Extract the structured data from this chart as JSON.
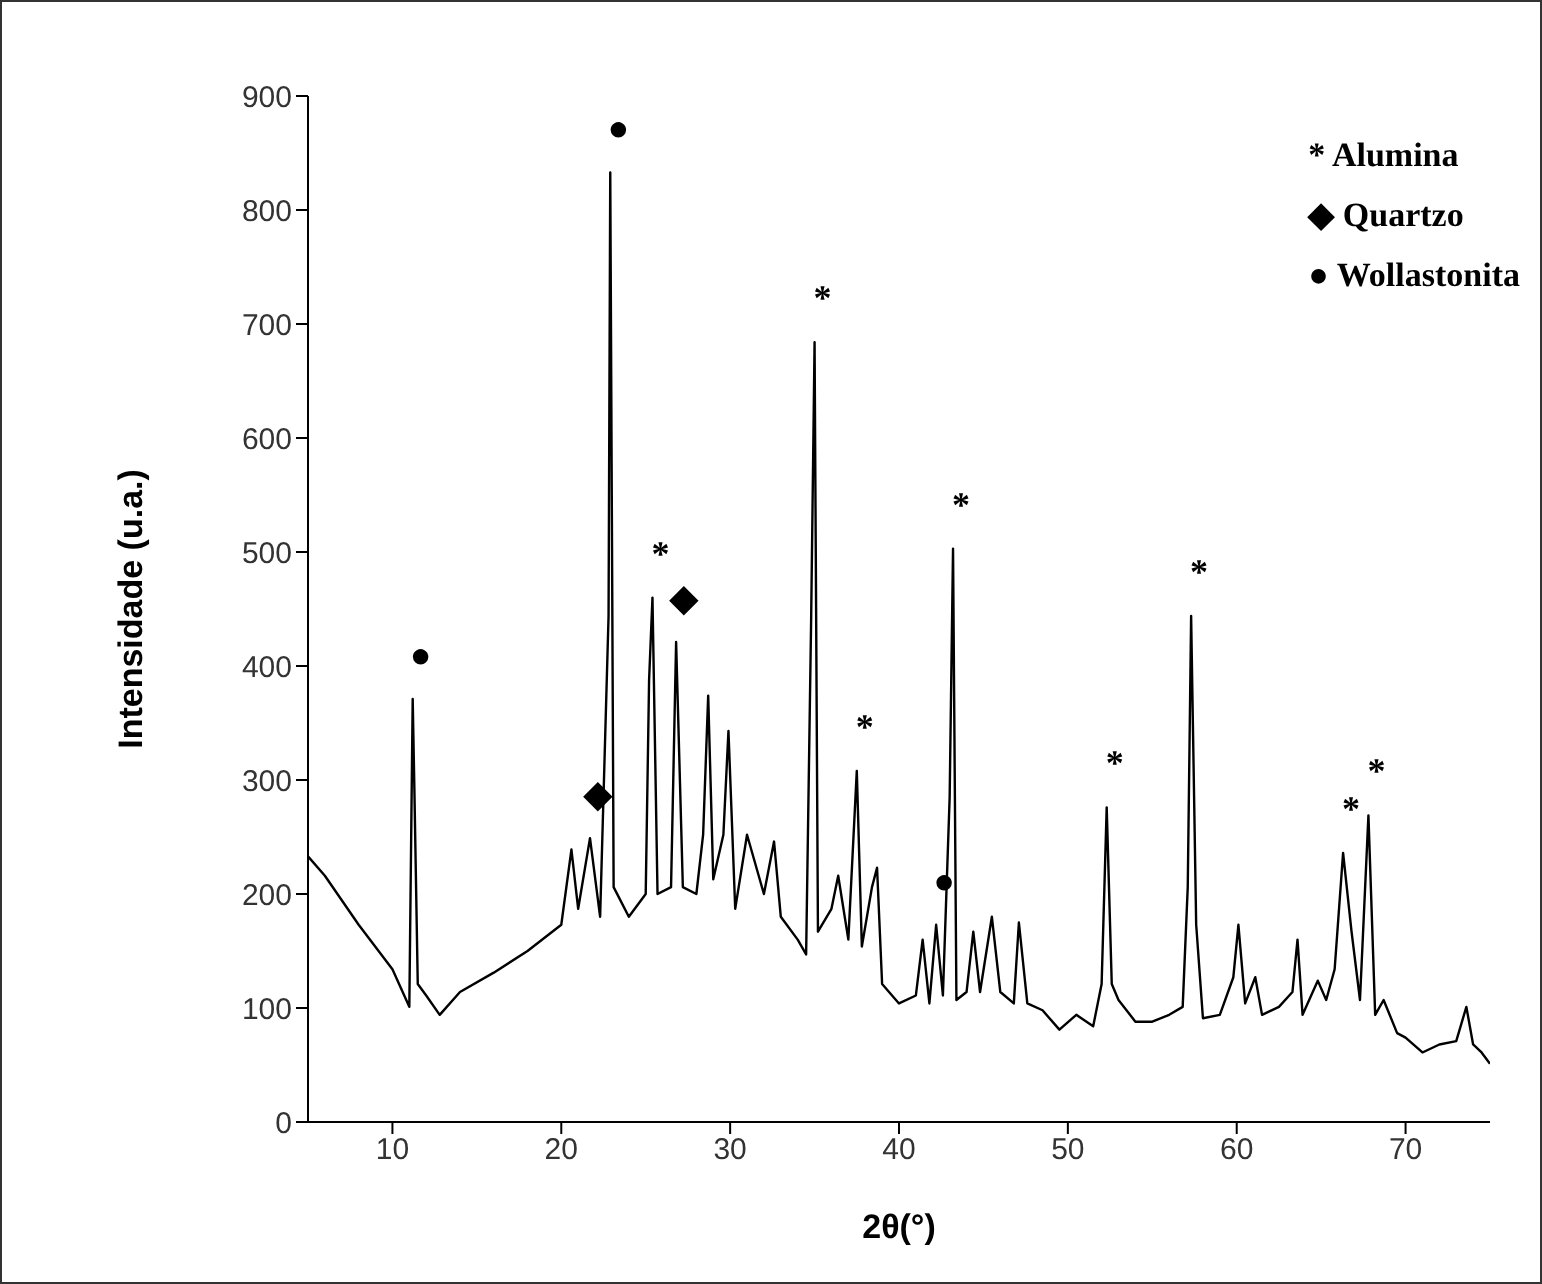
{
  "chart_data": {
    "type": "line",
    "xlabel": "2θ(°)",
    "ylabel": "Intensidade (u.a.)",
    "xlim": [
      5,
      75
    ],
    "xticks": [
      10,
      20,
      30,
      40,
      50,
      60,
      70
    ],
    "ylim": [
      0,
      900
    ],
    "yticks": [
      0,
      100,
      200,
      300,
      400,
      500,
      600,
      700,
      800,
      900
    ],
    "grid": false,
    "marker": "none",
    "line_style": "solid",
    "series": [
      {
        "color": "#000000",
        "x": [
          5,
          6,
          8,
          10,
          11,
          11.2,
          11.3,
          11.5,
          12,
          12.8,
          14,
          16,
          18,
          20,
          20.6,
          21,
          21.7,
          22.3,
          22.8,
          22.9,
          23.1,
          24,
          25,
          25.2,
          25.4,
          25.7,
          26.5,
          26.8,
          27.2,
          28,
          28.4,
          28.7,
          29,
          29.6,
          29.9,
          30.3,
          31,
          32,
          32.6,
          33,
          34,
          34.5,
          34.8,
          35,
          35.2,
          36,
          36.4,
          37,
          37.5,
          37.8,
          38.4,
          38.7,
          39,
          40,
          41,
          41.4,
          41.8,
          42.2,
          42.6,
          43,
          43.2,
          43.4,
          44,
          44.4,
          44.8,
          45.5,
          46,
          46.8,
          47.1,
          47.6,
          48.5,
          49.5,
          50.5,
          51.5,
          52,
          52.3,
          52.6,
          53,
          54,
          55,
          56,
          56.8,
          57.1,
          57.3,
          57.6,
          58,
          59,
          59.8,
          60.1,
          60.5,
          61.1,
          61.5,
          62.5,
          63.3,
          63.6,
          63.9,
          64.8,
          65.3,
          65.8,
          66.3,
          66.8,
          67.3,
          67.8,
          68.2,
          68.7,
          69.5,
          70,
          71,
          72,
          73,
          73.6,
          74,
          74.5,
          75
        ],
        "values": [
          233,
          216,
          173,
          134,
          101,
          371,
          292,
          121,
          111,
          94,
          114,
          131,
          150,
          173,
          239,
          187,
          249,
          180,
          444,
          833,
          206,
          180,
          200,
          388,
          460,
          200,
          206,
          421,
          206,
          200,
          252,
          374,
          213,
          252,
          343,
          187,
          252,
          200,
          246,
          180,
          160,
          147,
          444,
          684,
          167,
          187,
          216,
          160,
          308,
          154,
          206,
          223,
          121,
          104,
          111,
          160,
          104,
          173,
          111,
          285,
          503,
          107,
          114,
          167,
          114,
          180,
          114,
          104,
          175,
          104,
          98,
          81,
          94,
          84,
          121,
          276,
          121,
          107,
          88,
          88,
          94,
          101,
          206,
          444,
          173,
          91,
          94,
          127,
          173,
          104,
          127,
          94,
          101,
          114,
          160,
          94,
          124,
          107,
          134,
          236,
          167,
          107,
          269,
          94,
          107,
          78,
          74,
          61,
          68,
          71,
          101,
          68,
          61,
          51
        ]
      }
    ],
    "annotations": [
      "* Alumina",
      "◆ Quartzo",
      "● Wollastonita",
      {
        "text": "●",
        "x": 11.2,
        "y": 371
      },
      {
        "text": "◆",
        "x": 21.7,
        "y": 249
      },
      {
        "text": "●",
        "x": 22.9,
        "y": 833
      },
      {
        "text": "*",
        "x": 25.4,
        "y": 460
      },
      {
        "text": "◆",
        "x": 26.8,
        "y": 421
      },
      {
        "text": "*",
        "x": 35,
        "y": 684
      },
      {
        "text": "*",
        "x": 37.5,
        "y": 308
      },
      {
        "text": "●",
        "x": 42.2,
        "y": 173
      },
      {
        "text": "*",
        "x": 43.2,
        "y": 503
      },
      {
        "text": "*",
        "x": 52.3,
        "y": 276
      },
      {
        "text": "*",
        "x": 57.3,
        "y": 444
      },
      {
        "text": "*",
        "x": 66.3,
        "y": 236
      },
      {
        "text": "*",
        "x": 67.8,
        "y": 269
      }
    ]
  }
}
